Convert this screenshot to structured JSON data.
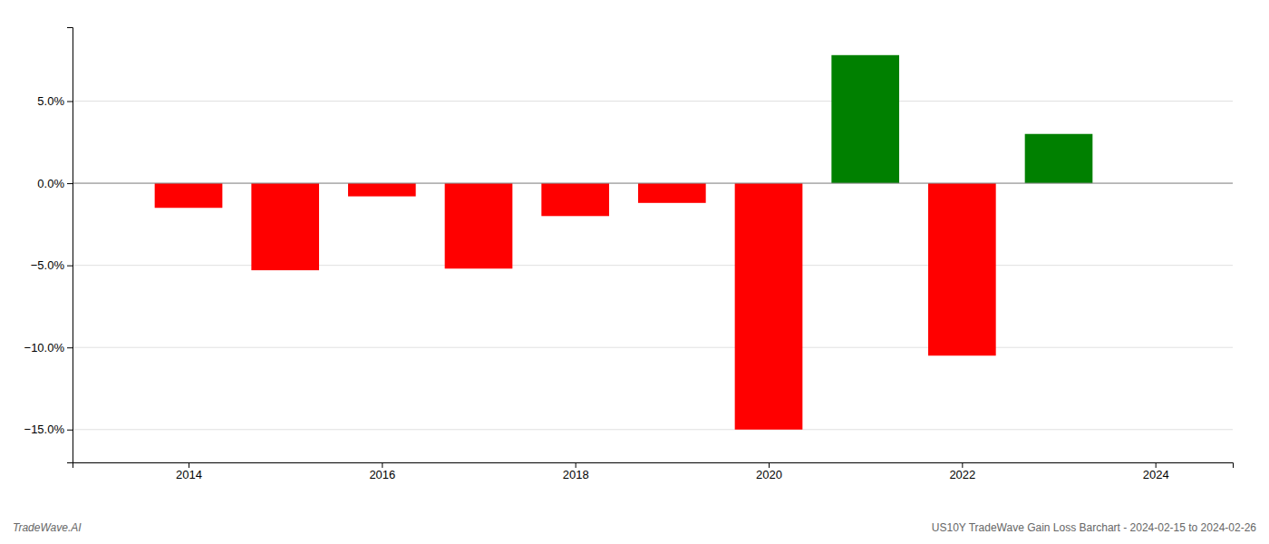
{
  "chart_data": {
    "type": "bar",
    "title": "US10Y TradeWave Gain Loss Barchart - 2024-02-15 to 2024-02-26",
    "annotations": [
      "TradeWave.AI"
    ],
    "x": [
      2014,
      2015,
      2016,
      2017,
      2018,
      2019,
      2020,
      2021,
      2022,
      2023
    ],
    "values": [
      -1.5,
      -5.3,
      -0.8,
      -5.2,
      -2.0,
      -1.2,
      -15.0,
      7.8,
      -10.5,
      3.0
    ],
    "colors": [
      "#ff0000",
      "#ff0000",
      "#ff0000",
      "#ff0000",
      "#ff0000",
      "#ff0000",
      "#ff0000",
      "#008000",
      "#ff0000",
      "#008000"
    ],
    "xlim": [
      2012.8,
      2024.8
    ],
    "xticks": [
      2014,
      2016,
      2018,
      2020,
      2022,
      2024
    ],
    "ylim": [
      -17,
      9.5
    ],
    "yticks": [
      {
        "value": -15.0,
        "label": "−15.0%"
      },
      {
        "value": -10.0,
        "label": "−10.0%"
      },
      {
        "value": -5.0,
        "label": "−5.0%"
      },
      {
        "value": 0.0,
        "label": "0.0%"
      },
      {
        "value": 5.0,
        "label": "5.0%"
      }
    ],
    "grid": true
  }
}
